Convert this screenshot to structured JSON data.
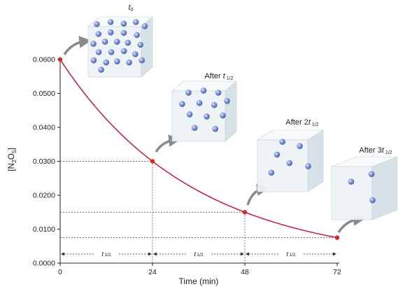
{
  "chart_data": {
    "type": "line",
    "title": "",
    "xlabel": "Time (min)",
    "ylabel": "[N2O5]",
    "ylabel_main": "N",
    "ylabel_sub1": "2",
    "ylabel_mid": "O",
    "ylabel_sub2": "5",
    "xlim": [
      0,
      72
    ],
    "ylim": [
      0,
      0.06
    ],
    "x_ticks": [
      0,
      24,
      48,
      72
    ],
    "x_tick_labels": [
      "0",
      "24",
      "48",
      "72"
    ],
    "y_ticks": [
      0,
      0.01,
      0.02,
      0.03,
      0.04,
      0.05,
      0.06
    ],
    "y_tick_labels": [
      "0.0000",
      "0.0100",
      "0.0200",
      "0.0300",
      "0.0400",
      "0.0500",
      "0.0600"
    ],
    "grid": false,
    "series": [
      {
        "half_life": 24,
        "initial": 0.06,
        "points": [
          {
            "x": 0,
            "y": 0.06
          },
          {
            "x": 24,
            "y": 0.03
          },
          {
            "x": 48,
            "y": 0.015
          },
          {
            "x": 72,
            "y": 0.0075
          }
        ]
      }
    ],
    "annotations": {
      "boxes": [
        {
          "label_parts": [
            {
              "t": "t",
              "italic": true
            },
            {
              "t": "0",
              "sub": true
            }
          ],
          "molecules": 24
        },
        {
          "label_parts": [
            {
              "t": "After "
            },
            {
              "t": "t",
              "italic": true
            },
            {
              "t": " 1/2",
              "sub": true
            }
          ],
          "molecules": 12
        },
        {
          "label_parts": [
            {
              "t": "After 2"
            },
            {
              "t": "t",
              "italic": true
            },
            {
              "t": " 1/2",
              "sub": true
            }
          ],
          "molecules": 6
        },
        {
          "label_parts": [
            {
              "t": "After 3"
            },
            {
              "t": "t",
              "italic": true
            },
            {
              "t": " 1/2",
              "sub": true
            }
          ],
          "molecules": 3
        }
      ],
      "intervals": [
        {
          "from": 0,
          "to": 24,
          "label_main": "t",
          "label_sub": "1/2"
        },
        {
          "from": 24,
          "to": 48,
          "label_main": "t",
          "label_sub": "1/2"
        },
        {
          "from": 48,
          "to": 72,
          "label_main": "t",
          "label_sub": "1/2"
        }
      ]
    },
    "colors": {
      "curve": "#c0284a",
      "point": "#d42a2a",
      "molecule": "#6d83c9",
      "box_front": "#eef3f6",
      "box_side": "#d7e2e8",
      "box_top": "#f7fafb",
      "arrow": "#8a8a8a"
    }
  }
}
